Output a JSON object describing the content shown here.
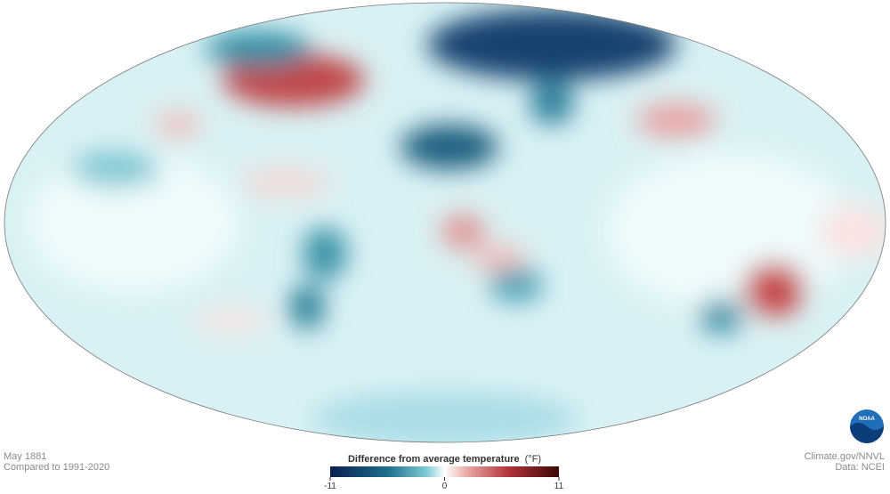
{
  "map": {
    "date": "May 1881",
    "baseline": "Compared to 1991-2020"
  },
  "legend": {
    "title": "Difference from average temperature",
    "unit": "(°F)",
    "range": [
      -11,
      11
    ],
    "ticks": [
      -11,
      0,
      11
    ]
  },
  "credits": {
    "source": "Climate.gov/NNVL",
    "data": "Data: NCEI",
    "logo": "NOAA"
  }
}
